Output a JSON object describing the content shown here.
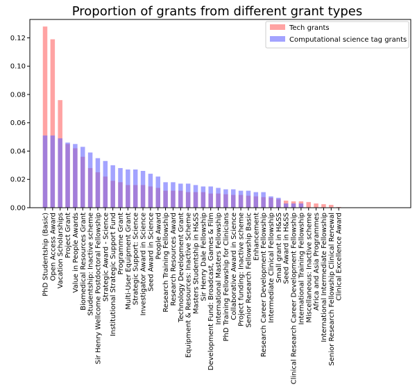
{
  "chart_data": {
    "type": "bar",
    "title": "Proportion of grants from different grant types",
    "xlabel": "",
    "ylabel": "",
    "ylim": [
      0,
      0.133
    ],
    "yticks": [
      0.0,
      0.02,
      0.04,
      0.06,
      0.08,
      0.1,
      0.12
    ],
    "ytick_labels": [
      "0.00",
      "0.02",
      "0.04",
      "0.06",
      "0.08",
      "0.10",
      "0.12"
    ],
    "grid": false,
    "legend_position": "top-right",
    "categories": [
      "PhD Studentship (Basic)",
      "Open Access Award",
      "Vacation Scholarships",
      "Project Grant",
      "Value in People Awards",
      "Biomedical Resources Grant",
      "Studentship: Inactive scheme",
      "Sir Henry Wellcome Postdoctoral Fellowship",
      "Strategic Award - Science",
      "Institutional Strategic Support Fund",
      "Programme Grant",
      "Multi-User Equipment Grant",
      "Strategic Support: Science",
      "Investigator Award in Science",
      "Seed Award in Science",
      "People Award",
      "Research Training Fellowship",
      "Research Resources Award",
      "Technology Development Grant",
      "Equipment & Resources: Inactive Scheme",
      "Masters Studentship in H&SS",
      "Sir Henry Dale Fellowship",
      "Development Fund: Broadcast, Games & Film",
      "International Masters Fellowship",
      "PhD Training Fellowship for Clinicians",
      "Collaborative Award in Science",
      "Project funding: Inactive scheme",
      "Senior Research Fellowship Basic",
      "Enhancement",
      "Research Career Development Fellowship",
      "Intermediate Clinical Fellowship",
      "Small grant in H&SS",
      "Seed Award in H&SS",
      "Clinical Research Career Development Fellowship",
      "International Training Fellowship",
      "Miscellaneous: Inactive scheme",
      "Africa and Asia Programmes",
      "International Intermediate Fellowship",
      "Senior Research Fellowship Clinical Renewal",
      "Clinical Excellence Award"
    ],
    "series": [
      {
        "name": "Tech grants",
        "color": "#ff6666",
        "values": [
          0.128,
          0.119,
          0.076,
          0.045,
          0.042,
          0.036,
          0.028,
          0.025,
          0.022,
          0.019,
          0.018,
          0.016,
          0.016,
          0.016,
          0.015,
          0.014,
          0.012,
          0.012,
          0.012,
          0.011,
          0.011,
          0.011,
          0.01,
          0.01,
          0.0095,
          0.009,
          0.009,
          0.0085,
          0.008,
          0.0075,
          0.007,
          0.006,
          0.005,
          0.0045,
          0.0045,
          0.004,
          0.003,
          0.0025,
          0.002,
          0.0005
        ]
      },
      {
        "name": "Computational science tag grants",
        "color": "#6666ff",
        "values": [
          0.051,
          0.051,
          0.049,
          0.046,
          0.045,
          0.043,
          0.039,
          0.035,
          0.033,
          0.03,
          0.028,
          0.027,
          0.027,
          0.026,
          0.024,
          0.022,
          0.018,
          0.018,
          0.017,
          0.017,
          0.016,
          0.015,
          0.015,
          0.014,
          0.013,
          0.013,
          0.012,
          0.012,
          0.011,
          0.011,
          0.008,
          0.007,
          0.003,
          0.003,
          0.003,
          0.0,
          0.0,
          0.0,
          0.0,
          0.0
        ]
      }
    ]
  }
}
